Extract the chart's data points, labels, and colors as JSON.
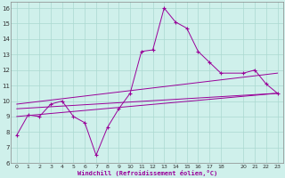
{
  "xlabel": "Windchill (Refroidissement éolien,°C)",
  "bg_color": "#cff0eb",
  "grid_color": "#aad8d0",
  "line_color": "#990099",
  "xlim": [
    -0.5,
    23.5
  ],
  "ylim": [
    6,
    16.4
  ],
  "xticks": [
    0,
    1,
    2,
    3,
    4,
    5,
    6,
    7,
    8,
    9,
    10,
    11,
    12,
    13,
    14,
    15,
    16,
    17,
    18,
    20,
    21,
    22,
    23
  ],
  "yticks": [
    6,
    7,
    8,
    9,
    10,
    11,
    12,
    13,
    14,
    15,
    16
  ],
  "main_line_x": [
    0,
    1,
    2,
    3,
    4,
    5,
    6,
    7,
    8,
    9,
    10,
    11,
    12,
    13,
    14,
    15,
    16,
    17,
    18,
    20,
    21,
    22,
    23
  ],
  "main_line_y": [
    7.8,
    9.1,
    9.0,
    9.8,
    10.0,
    9.0,
    8.6,
    6.5,
    8.3,
    9.5,
    10.5,
    13.2,
    13.3,
    16.0,
    15.1,
    14.7,
    13.2,
    12.5,
    11.8,
    11.8,
    12.0,
    11.1,
    10.5
  ],
  "trend_lines": [
    {
      "x": [
        0,
        23
      ],
      "y": [
        9.0,
        10.5
      ]
    },
    {
      "x": [
        0,
        23
      ],
      "y": [
        9.5,
        10.5
      ]
    },
    {
      "x": [
        0,
        23
      ],
      "y": [
        9.8,
        11.8
      ]
    }
  ]
}
